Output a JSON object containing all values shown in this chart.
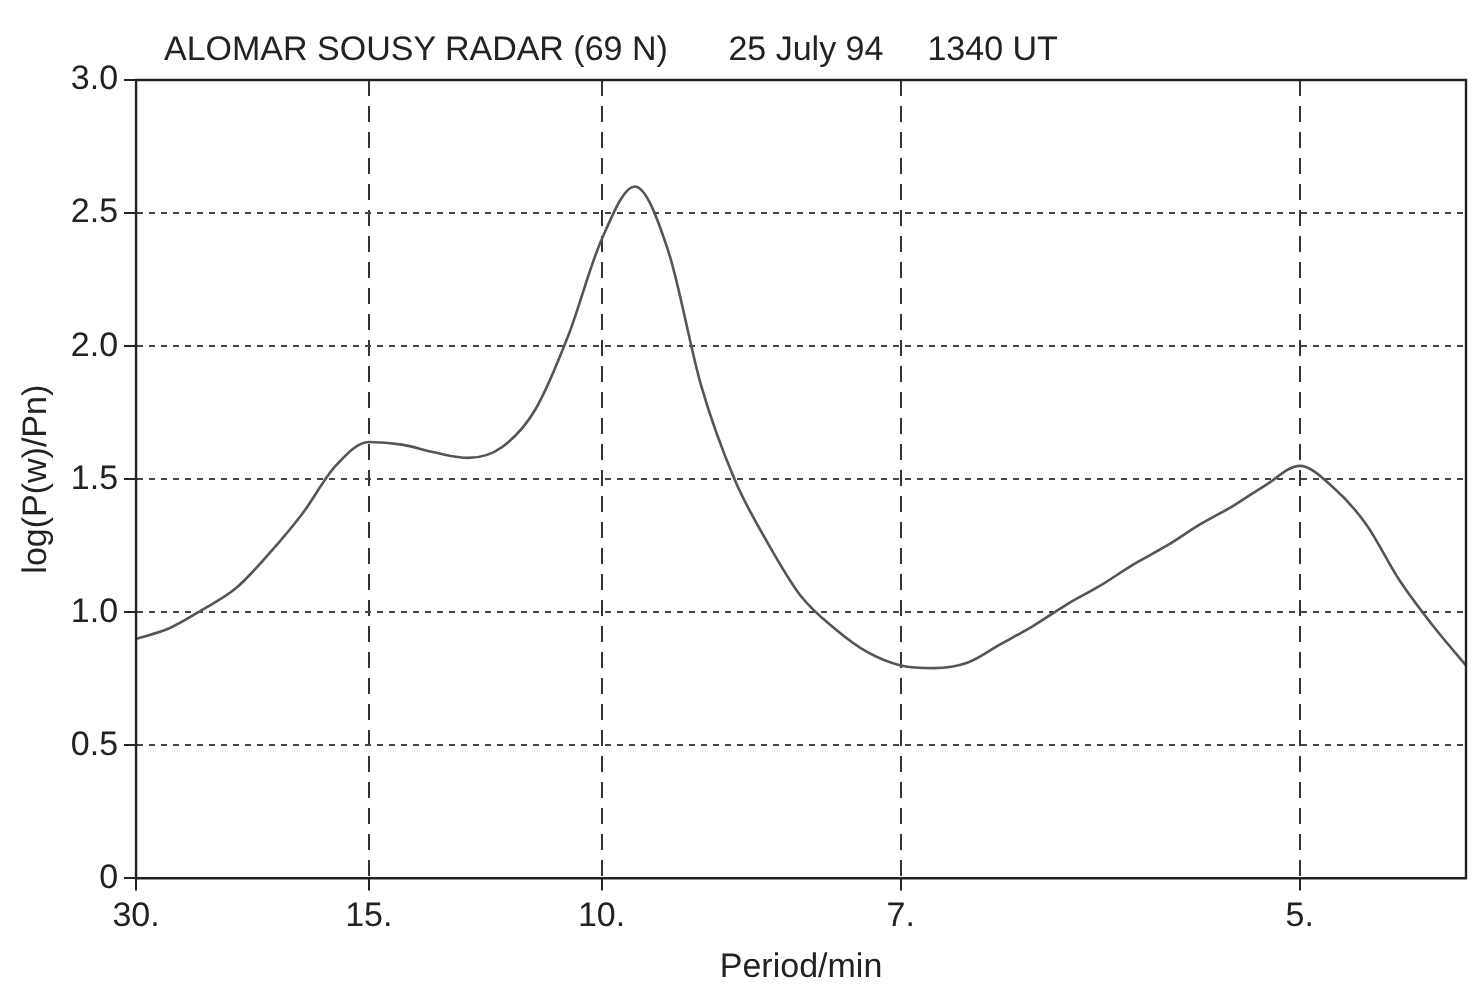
{
  "chart_data": {
    "type": "line",
    "title": "ALOMAR SOUSY RADAR (69 N)",
    "annotations": [
      "25 July 94",
      "1340 UT"
    ],
    "xlabel": "Period/min",
    "ylabel": "log(P(w)/Pn)",
    "categories": [
      "30.",
      null,
      null,
      null,
      null,
      null,
      null,
      "15.",
      null,
      null,
      null,
      null,
      null,
      null,
      "10.",
      null,
      null,
      null,
      null,
      null,
      null,
      null,
      null,
      "7.",
      null,
      null,
      null,
      null,
      null,
      null,
      null,
      null,
      null,
      null,
      null,
      "5.",
      null,
      null,
      null,
      null,
      null
    ],
    "series": [
      {
        "color": "#555555",
        "values": [
          0.9,
          0.94,
          1.01,
          1.09,
          1.22,
          1.37,
          1.55,
          1.64,
          1.63,
          1.6,
          1.58,
          1.62,
          1.76,
          2.04,
          2.4,
          2.6,
          2.36,
          1.85,
          1.5,
          1.26,
          1.06,
          0.94,
          0.85,
          0.8,
          0.79,
          0.81,
          0.88,
          0.95,
          1.03,
          1.1,
          1.18,
          1.25,
          1.33,
          1.4,
          1.48,
          1.55,
          1.47,
          1.33,
          1.12,
          0.95,
          0.8
        ]
      }
    ],
    "ylim": [
      0,
      3.0
    ],
    "yticks": [
      {
        "value": 0,
        "label": "0"
      },
      {
        "value": 0.5,
        "label": "0.5"
      },
      {
        "value": 1.0,
        "label": "1.0"
      },
      {
        "value": 1.5,
        "label": "1.5"
      },
      {
        "value": 2.0,
        "label": "2.0"
      },
      {
        "value": 2.5,
        "label": "2.5"
      },
      {
        "value": 3.0,
        "label": "3.0"
      }
    ],
    "grid": true,
    "legend": false,
    "marker": "none",
    "line_style": "solid"
  }
}
